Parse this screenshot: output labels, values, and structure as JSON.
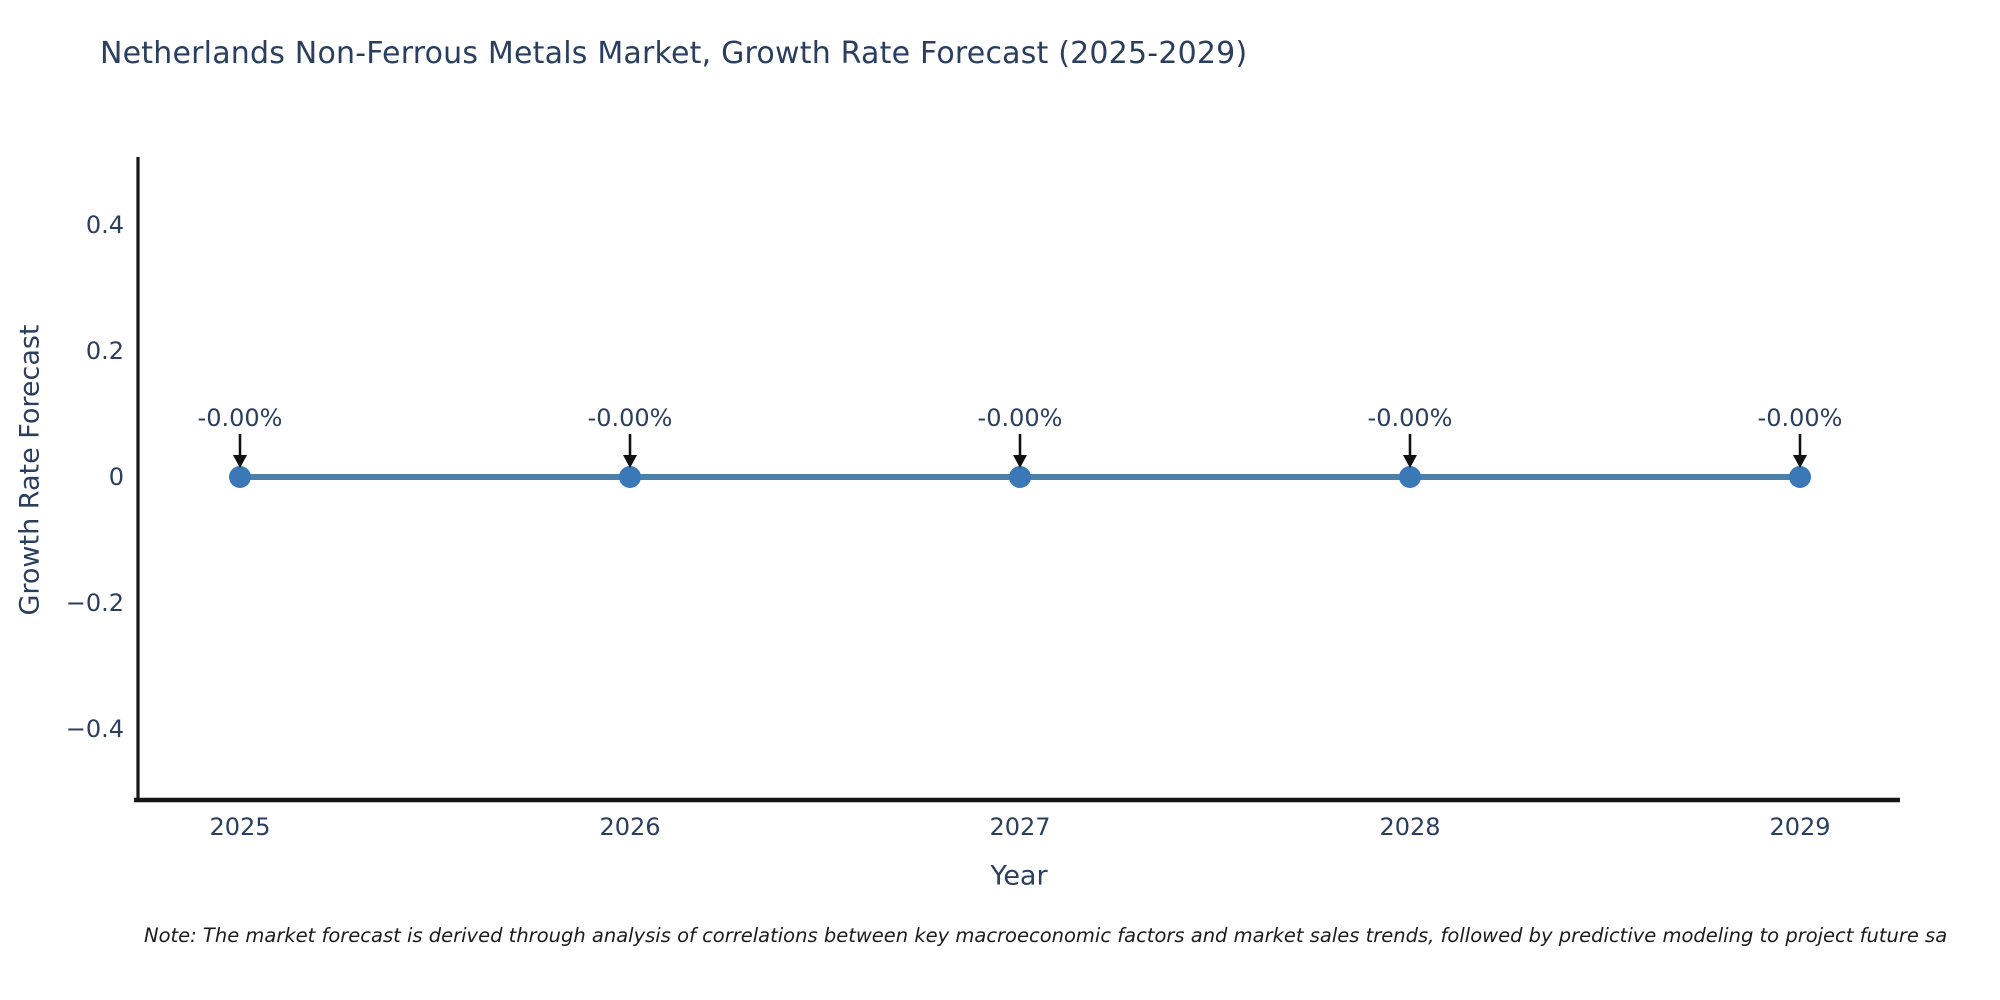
{
  "page": {
    "title": "Netherlands Non-Ferrous Metals Market, Growth Rate Forecast (2025-2029)",
    "note": "Note: The market forecast is derived through analysis of correlations between key macroeconomic factors and market sales trends, followed by predictive modeling to project future sa"
  },
  "chart_data": {
    "type": "line",
    "title": "Netherlands Non-Ferrous Metals Market, Growth Rate Forecast (2025-2029)",
    "categories": [
      "2025",
      "2026",
      "2027",
      "2028",
      "2029"
    ],
    "series": [
      {
        "name": "Growth Rate Forecast",
        "values": [
          0,
          0,
          0,
          0,
          0
        ]
      }
    ],
    "point_labels": [
      "-0.00%",
      "-0.00%",
      "-0.00%",
      "-0.00%",
      "-0.00%"
    ],
    "xlabel": "Year",
    "ylabel": "Growth Rate Forecast",
    "yticks": [
      0.4,
      0.2,
      0,
      -0.2,
      -0.4
    ],
    "ylim": [
      -0.5,
      0.5
    ],
    "grid": false,
    "legend": "none",
    "annotation_arrows": "down-arrow-to-point",
    "colors": {
      "line": "#4d80a9",
      "marker": "#3a78b8",
      "arrow": "#111111",
      "axis": "#161616",
      "text": "#2a3f5f"
    }
  }
}
